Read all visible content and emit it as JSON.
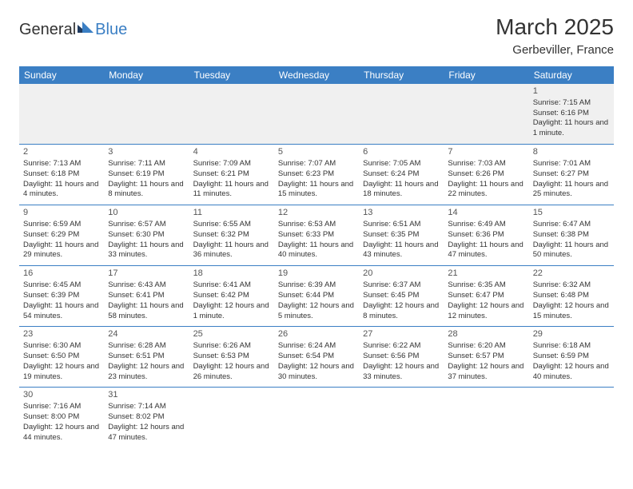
{
  "logo": {
    "part1": "General",
    "part2": "Blue"
  },
  "title": "March 2025",
  "location": "Gerbeviller, France",
  "header_bg": "#3b7fc4",
  "header_fg": "#ffffff",
  "border_color": "#3b7fc4",
  "days": [
    "Sunday",
    "Monday",
    "Tuesday",
    "Wednesday",
    "Thursday",
    "Friday",
    "Saturday"
  ],
  "weeks": [
    [
      null,
      null,
      null,
      null,
      null,
      null,
      {
        "n": "1",
        "sr": "Sunrise: 7:15 AM",
        "ss": "Sunset: 6:16 PM",
        "dl": "Daylight: 11 hours and 1 minute."
      }
    ],
    [
      {
        "n": "2",
        "sr": "Sunrise: 7:13 AM",
        "ss": "Sunset: 6:18 PM",
        "dl": "Daylight: 11 hours and 4 minutes."
      },
      {
        "n": "3",
        "sr": "Sunrise: 7:11 AM",
        "ss": "Sunset: 6:19 PM",
        "dl": "Daylight: 11 hours and 8 minutes."
      },
      {
        "n": "4",
        "sr": "Sunrise: 7:09 AM",
        "ss": "Sunset: 6:21 PM",
        "dl": "Daylight: 11 hours and 11 minutes."
      },
      {
        "n": "5",
        "sr": "Sunrise: 7:07 AM",
        "ss": "Sunset: 6:23 PM",
        "dl": "Daylight: 11 hours and 15 minutes."
      },
      {
        "n": "6",
        "sr": "Sunrise: 7:05 AM",
        "ss": "Sunset: 6:24 PM",
        "dl": "Daylight: 11 hours and 18 minutes."
      },
      {
        "n": "7",
        "sr": "Sunrise: 7:03 AM",
        "ss": "Sunset: 6:26 PM",
        "dl": "Daylight: 11 hours and 22 minutes."
      },
      {
        "n": "8",
        "sr": "Sunrise: 7:01 AM",
        "ss": "Sunset: 6:27 PM",
        "dl": "Daylight: 11 hours and 25 minutes."
      }
    ],
    [
      {
        "n": "9",
        "sr": "Sunrise: 6:59 AM",
        "ss": "Sunset: 6:29 PM",
        "dl": "Daylight: 11 hours and 29 minutes."
      },
      {
        "n": "10",
        "sr": "Sunrise: 6:57 AM",
        "ss": "Sunset: 6:30 PM",
        "dl": "Daylight: 11 hours and 33 minutes."
      },
      {
        "n": "11",
        "sr": "Sunrise: 6:55 AM",
        "ss": "Sunset: 6:32 PM",
        "dl": "Daylight: 11 hours and 36 minutes."
      },
      {
        "n": "12",
        "sr": "Sunrise: 6:53 AM",
        "ss": "Sunset: 6:33 PM",
        "dl": "Daylight: 11 hours and 40 minutes."
      },
      {
        "n": "13",
        "sr": "Sunrise: 6:51 AM",
        "ss": "Sunset: 6:35 PM",
        "dl": "Daylight: 11 hours and 43 minutes."
      },
      {
        "n": "14",
        "sr": "Sunrise: 6:49 AM",
        "ss": "Sunset: 6:36 PM",
        "dl": "Daylight: 11 hours and 47 minutes."
      },
      {
        "n": "15",
        "sr": "Sunrise: 6:47 AM",
        "ss": "Sunset: 6:38 PM",
        "dl": "Daylight: 11 hours and 50 minutes."
      }
    ],
    [
      {
        "n": "16",
        "sr": "Sunrise: 6:45 AM",
        "ss": "Sunset: 6:39 PM",
        "dl": "Daylight: 11 hours and 54 minutes."
      },
      {
        "n": "17",
        "sr": "Sunrise: 6:43 AM",
        "ss": "Sunset: 6:41 PM",
        "dl": "Daylight: 11 hours and 58 minutes."
      },
      {
        "n": "18",
        "sr": "Sunrise: 6:41 AM",
        "ss": "Sunset: 6:42 PM",
        "dl": "Daylight: 12 hours and 1 minute."
      },
      {
        "n": "19",
        "sr": "Sunrise: 6:39 AM",
        "ss": "Sunset: 6:44 PM",
        "dl": "Daylight: 12 hours and 5 minutes."
      },
      {
        "n": "20",
        "sr": "Sunrise: 6:37 AM",
        "ss": "Sunset: 6:45 PM",
        "dl": "Daylight: 12 hours and 8 minutes."
      },
      {
        "n": "21",
        "sr": "Sunrise: 6:35 AM",
        "ss": "Sunset: 6:47 PM",
        "dl": "Daylight: 12 hours and 12 minutes."
      },
      {
        "n": "22",
        "sr": "Sunrise: 6:32 AM",
        "ss": "Sunset: 6:48 PM",
        "dl": "Daylight: 12 hours and 15 minutes."
      }
    ],
    [
      {
        "n": "23",
        "sr": "Sunrise: 6:30 AM",
        "ss": "Sunset: 6:50 PM",
        "dl": "Daylight: 12 hours and 19 minutes."
      },
      {
        "n": "24",
        "sr": "Sunrise: 6:28 AM",
        "ss": "Sunset: 6:51 PM",
        "dl": "Daylight: 12 hours and 23 minutes."
      },
      {
        "n": "25",
        "sr": "Sunrise: 6:26 AM",
        "ss": "Sunset: 6:53 PM",
        "dl": "Daylight: 12 hours and 26 minutes."
      },
      {
        "n": "26",
        "sr": "Sunrise: 6:24 AM",
        "ss": "Sunset: 6:54 PM",
        "dl": "Daylight: 12 hours and 30 minutes."
      },
      {
        "n": "27",
        "sr": "Sunrise: 6:22 AM",
        "ss": "Sunset: 6:56 PM",
        "dl": "Daylight: 12 hours and 33 minutes."
      },
      {
        "n": "28",
        "sr": "Sunrise: 6:20 AM",
        "ss": "Sunset: 6:57 PM",
        "dl": "Daylight: 12 hours and 37 minutes."
      },
      {
        "n": "29",
        "sr": "Sunrise: 6:18 AM",
        "ss": "Sunset: 6:59 PM",
        "dl": "Daylight: 12 hours and 40 minutes."
      }
    ],
    [
      {
        "n": "30",
        "sr": "Sunrise: 7:16 AM",
        "ss": "Sunset: 8:00 PM",
        "dl": "Daylight: 12 hours and 44 minutes."
      },
      {
        "n": "31",
        "sr": "Sunrise: 7:14 AM",
        "ss": "Sunset: 8:02 PM",
        "dl": "Daylight: 12 hours and 47 minutes."
      },
      null,
      null,
      null,
      null,
      null
    ]
  ]
}
